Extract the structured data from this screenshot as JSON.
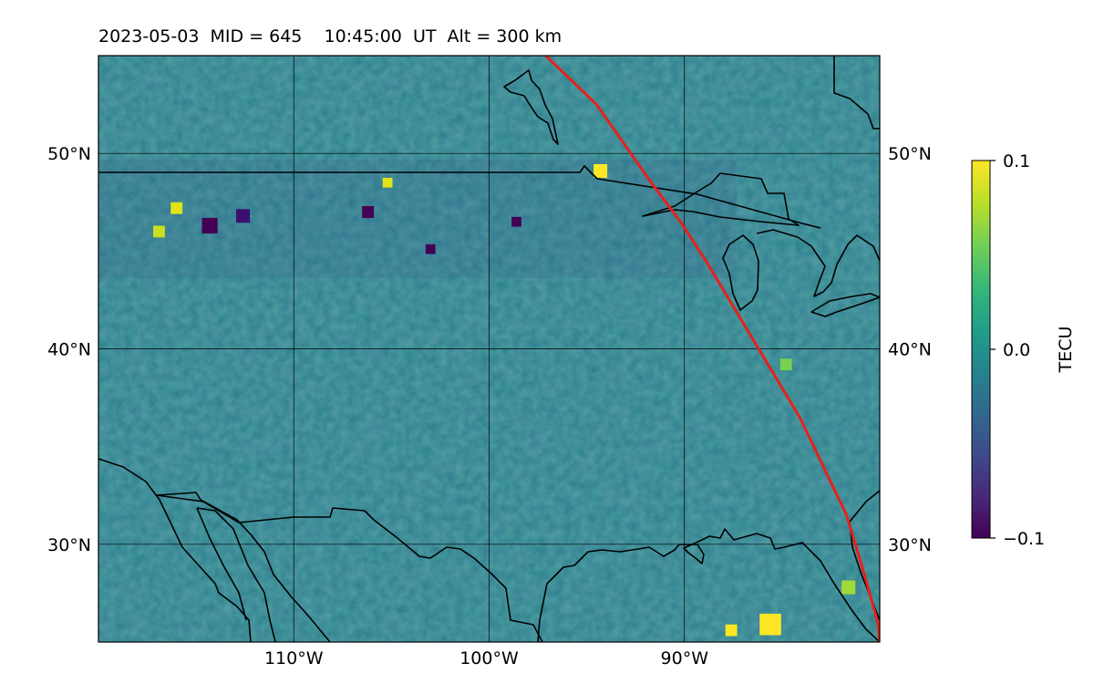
{
  "title": "2023-05-03  MID = 645    10:45:00  UT  Alt = 300 km",
  "map": {
    "projection": "PlateCarree",
    "lon_range": [
      -120,
      -80
    ],
    "lat_range": [
      25,
      55
    ],
    "lon_ticks": [
      {
        "value": -110,
        "label": "110°W"
      },
      {
        "value": -100,
        "label": "100°W"
      },
      {
        "value": -90,
        "label": "90°W"
      }
    ],
    "lat_ticks": [
      {
        "value": 30,
        "label": "30°N"
      },
      {
        "value": 40,
        "label": "40°N"
      },
      {
        "value": 50,
        "label": "50°N"
      }
    ],
    "grid": true,
    "coastline_color": "#000000",
    "track_color": "#e8201a",
    "track": [
      [
        -97.1,
        55
      ],
      [
        -94.5,
        52.5
      ],
      [
        -93.1,
        50.5
      ],
      [
        -91.7,
        48.5
      ],
      [
        -90.2,
        46.5
      ],
      [
        -88.9,
        44.5
      ],
      [
        -87.4,
        42.0
      ],
      [
        -85.6,
        39.0
      ],
      [
        -84.1,
        36.5
      ],
      [
        -82.9,
        34.0
      ],
      [
        -81.7,
        31.5
      ],
      [
        -80.8,
        28.5
      ],
      [
        -80.1,
        26.0
      ],
      [
        -80.0,
        25.0
      ]
    ]
  },
  "features": {
    "highlights": [
      {
        "lon": -94.3,
        "lat": 49.1,
        "size": 0.7,
        "color": "#fde725"
      },
      {
        "lon": -85.6,
        "lat": 25.9,
        "size": 1.1,
        "color": "#fde725"
      },
      {
        "lon": -87.6,
        "lat": 25.6,
        "size": 0.6,
        "color": "#fde725"
      },
      {
        "lon": -116.9,
        "lat": 46.0,
        "size": 0.6,
        "color": "#c7e020"
      },
      {
        "lon": -116.0,
        "lat": 47.2,
        "size": 0.6,
        "color": "#e2e418"
      },
      {
        "lon": -105.2,
        "lat": 48.5,
        "size": 0.5,
        "color": "#e2e418"
      },
      {
        "lon": -114.3,
        "lat": 46.3,
        "size": 0.8,
        "color": "#440154"
      },
      {
        "lon": -112.6,
        "lat": 46.8,
        "size": 0.7,
        "color": "#3b0f70"
      },
      {
        "lon": -103.0,
        "lat": 45.1,
        "size": 0.5,
        "color": "#440154"
      },
      {
        "lon": -98.6,
        "lat": 46.5,
        "size": 0.5,
        "color": "#440154"
      },
      {
        "lon": -106.2,
        "lat": 47.0,
        "size": 0.6,
        "color": "#440154"
      },
      {
        "lon": -84.8,
        "lat": 39.2,
        "size": 0.6,
        "color": "#7ad151"
      },
      {
        "lon": -81.6,
        "lat": 27.8,
        "size": 0.7,
        "color": "#a0da39"
      }
    ]
  },
  "colorbar": {
    "label": "TECU",
    "min": -0.1,
    "max": 0.1,
    "ticks": [
      {
        "value": 0.1,
        "label": "0.1"
      },
      {
        "value": 0.0,
        "label": "0.0"
      },
      {
        "value": -0.1,
        "label": "−0.1"
      }
    ],
    "colormap": "viridis",
    "colors": [
      "#440154",
      "#482878",
      "#3e4a89",
      "#31688e",
      "#26828e",
      "#1f9e89",
      "#35b779",
      "#6ece58",
      "#b5de2b",
      "#fde725"
    ]
  }
}
